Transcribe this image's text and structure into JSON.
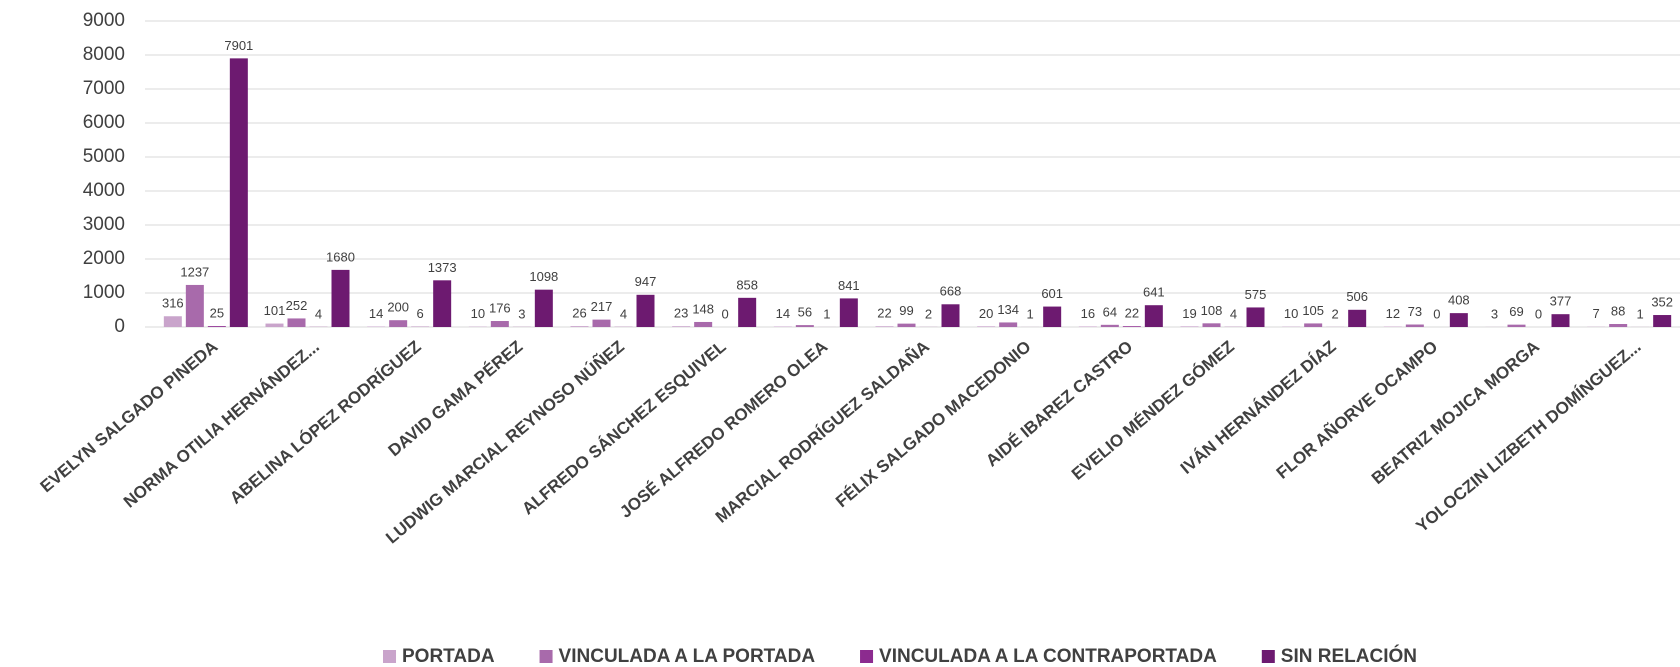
{
  "chart_data": {
    "type": "bar",
    "categories": [
      "EVELYN SALGADO PINEDA",
      "NORMA OTILIA HERNÁNDEZ...",
      "ABELINA LÓPEZ RODRÍGUEZ",
      "DAVID GAMA PÉREZ",
      "LUDWIG MARCIAL REYNOSO NÚÑEZ",
      "ALFREDO SÁNCHEZ ESQUIVEL",
      "JOSÉ ALFREDO ROMERO OLEA",
      "MARCIAL RODRÍGUEZ SALDAÑA",
      "FÉLIX SALGADO MACEDONIO",
      "AIDÉ IBAREZ CASTRO",
      "EVELIO MÉNDEZ GÓMEZ",
      "IVÁN HERNÁNDEZ DÍAZ",
      "FLOR AÑORVE OCAMPO",
      "BEATRIZ MOJICA MORGA",
      "YOLOCZIN LIZBETH DOMÍNGUEZ..."
    ],
    "series": [
      {
        "name": "PORTADA",
        "color": "#c9a4cb",
        "values": [
          316,
          101,
          14,
          10,
          26,
          23,
          14,
          22,
          20,
          16,
          19,
          10,
          12,
          3,
          7
        ]
      },
      {
        "name": "VINCULADA A LA PORTADA",
        "color": "#a86aab",
        "values": [
          1237,
          252,
          200,
          176,
          217,
          148,
          56,
          99,
          134,
          64,
          108,
          105,
          73,
          69,
          88
        ]
      },
      {
        "name": "VINCULADA A LA CONTRAPORTADA",
        "color": "#8c2b8f",
        "values": [
          25,
          4,
          6,
          3,
          4,
          0,
          1,
          2,
          1,
          22,
          4,
          2,
          0,
          0,
          1
        ]
      },
      {
        "name": "SIN RELACIÓN",
        "color": "#6d1a70",
        "values": [
          7901,
          1680,
          1373,
          1098,
          947,
          858,
          841,
          668,
          601,
          641,
          575,
          506,
          408,
          377,
          352
        ]
      }
    ],
    "ylim": [
      0,
      9000
    ],
    "yticks": [
      0,
      1000,
      2000,
      3000,
      4000,
      5000,
      6000,
      7000,
      8000,
      9000
    ],
    "grid": true,
    "legend": "bottom"
  }
}
